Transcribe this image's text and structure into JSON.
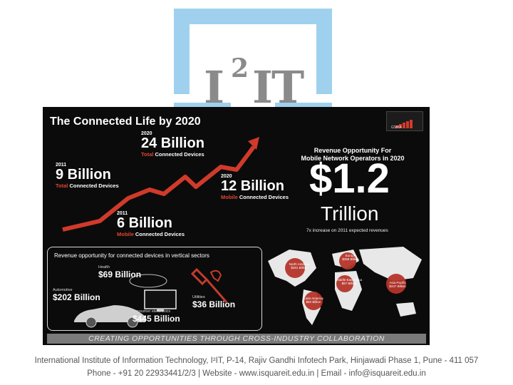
{
  "logo": {
    "text_main": "I",
    "text_sup": "2",
    "text_end": "IT",
    "accent_color": "#9fd1ee"
  },
  "infographic": {
    "title": "The Connected Life by 2020",
    "badge": "GSMA",
    "stats": [
      {
        "year": "2020",
        "value": "24 Billion",
        "sub_red": "Total",
        "sub_rest": " Connected Devices"
      },
      {
        "year": "2011",
        "value": "9 Billion",
        "sub_red": "Total",
        "sub_rest": " Connected Devices"
      },
      {
        "year": "2020",
        "value": "12 Billion",
        "sub_red": "Mobile",
        "sub_rest": " Connected Devices"
      },
      {
        "year": "2011",
        "value": "6 Billion",
        "sub_red": "Mobile",
        "sub_rest": " Connected Devices"
      }
    ],
    "revenue": {
      "heading_line1": "Revenue Opportunity For",
      "heading_line2": "Mobile Network Operators in 2020",
      "amount": "$1.2",
      "unit": "Trillion",
      "note": "7x increase on 2011 expected revenues"
    },
    "sectors": {
      "heading": "Revenue opportunity for connected devices in vertical sectors",
      "items": [
        {
          "label": "Health",
          "value": "$69 Billion"
        },
        {
          "label": "Automotive",
          "value": "$202 Billion"
        },
        {
          "label": "Consumer electronics",
          "value": "$445 Billion"
        },
        {
          "label": "Utilities",
          "value": "$36 Billion"
        }
      ]
    },
    "regions": [
      {
        "name": "North America",
        "value": "$281 Billion"
      },
      {
        "name": "Europe",
        "value": "$358 Billion"
      },
      {
        "name": "Middle East Africa",
        "value": "$87 Billion"
      },
      {
        "name": "Latin America",
        "value": "$82 Billion"
      },
      {
        "name": "Asia Pacific",
        "value": "$447 Billion"
      }
    ],
    "banner": "CREATING OPPORTUNITIES THROUGH CROSS-INDUSTRY COLLABORATION",
    "accent_color": "#d03a2a"
  },
  "footer": {
    "line1": "International Institute of Information Technology, I²IT, P-14, Rajiv Gandhi Infotech Park, Hinjawadi Phase 1, Pune - 411 057",
    "line2": "Phone - +91 20 22933441/2/3 | Website - www.isquareit.edu.in | Email - info@isquareit.edu.in"
  }
}
